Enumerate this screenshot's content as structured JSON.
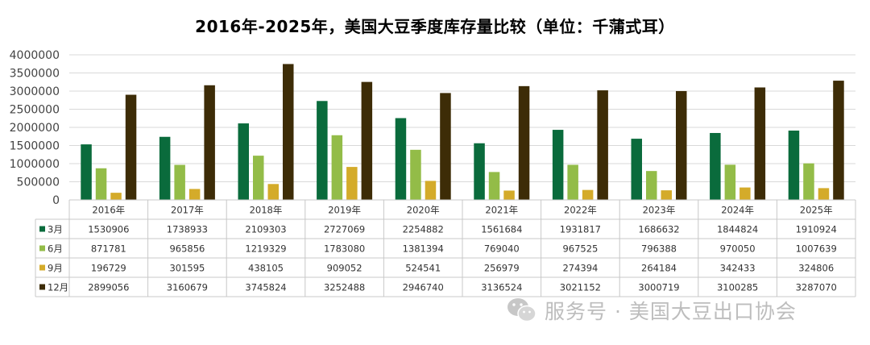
{
  "chart_data": {
    "type": "bar",
    "title": "2016年-2025年，美国大豆季度库存量比较（单位：千蒲式耳）",
    "categories": [
      "2016年",
      "2017年",
      "2018年",
      "2019年",
      "2020年",
      "2021年",
      "2022年",
      "2023年",
      "2024年",
      "2025年"
    ],
    "ylim": [
      0,
      4000000
    ],
    "yticks": [
      "0",
      "500000",
      "1000000",
      "1500000",
      "2000000",
      "2500000",
      "3000000",
      "3500000",
      "4000000"
    ],
    "grid": true,
    "legend": "data-table-left",
    "series": [
      {
        "name": "3月",
        "color": "#0a6b3c",
        "values": [
          1530906,
          1738933,
          2109303,
          2727069,
          2254882,
          1561684,
          1931817,
          1686632,
          1844824,
          1910924
        ]
      },
      {
        "name": "6月",
        "color": "#93bc48",
        "values": [
          871781,
          965856,
          1219329,
          1783080,
          1381394,
          769040,
          967525,
          796388,
          970050,
          1007639
        ]
      },
      {
        "name": "9月",
        "color": "#d4ab2a",
        "values": [
          196729,
          301595,
          438105,
          909052,
          524541,
          256979,
          274394,
          264184,
          342433,
          324806
        ]
      },
      {
        "name": "12月",
        "color": "#3d2c07",
        "values": [
          2899056,
          3160679,
          3745824,
          3252488,
          2946740,
          3136524,
          3021152,
          3000719,
          3100285,
          3287070
        ]
      }
    ]
  },
  "watermark": {
    "text": "服务号 · 美国大豆出口协会",
    "icon": "wechat-icon"
  }
}
